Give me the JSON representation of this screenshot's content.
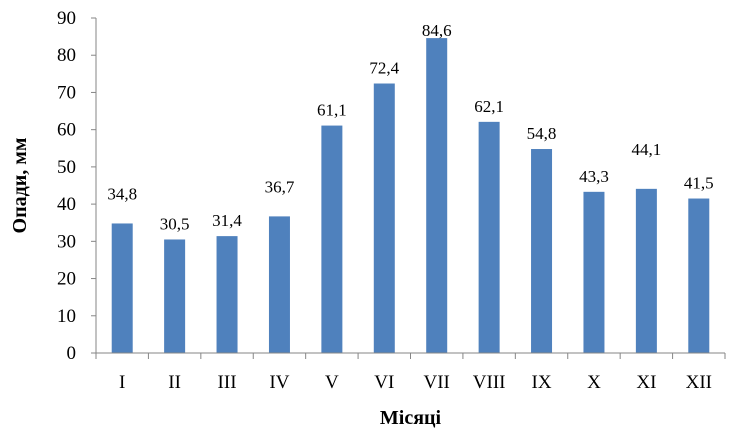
{
  "chart_data": {
    "type": "bar",
    "categories": [
      "I",
      "II",
      "III",
      "IV",
      "V",
      "VI",
      "VII",
      "VIII",
      "IX",
      "X",
      "XI",
      "XII"
    ],
    "values": [
      34.8,
      30.5,
      31.4,
      36.7,
      61.1,
      72.4,
      84.6,
      62.1,
      54.8,
      43.3,
      44.1,
      41.5
    ],
    "data_labels": [
      "34,8",
      "30,5",
      "31,4",
      "36,7",
      "61,1",
      "72,4",
      "84,6",
      "62,1",
      "54,8",
      "43,3",
      "44,1",
      "41,5"
    ],
    "xlabel": "Місяці",
    "ylabel": "Опади, мм",
    "ylim": [
      0,
      90
    ],
    "yticks": [
      "0",
      "10",
      "20",
      "30",
      "40",
      "50",
      "60",
      "70",
      "80",
      "90"
    ],
    "grid": false,
    "bar_color": "#4f81bd"
  }
}
